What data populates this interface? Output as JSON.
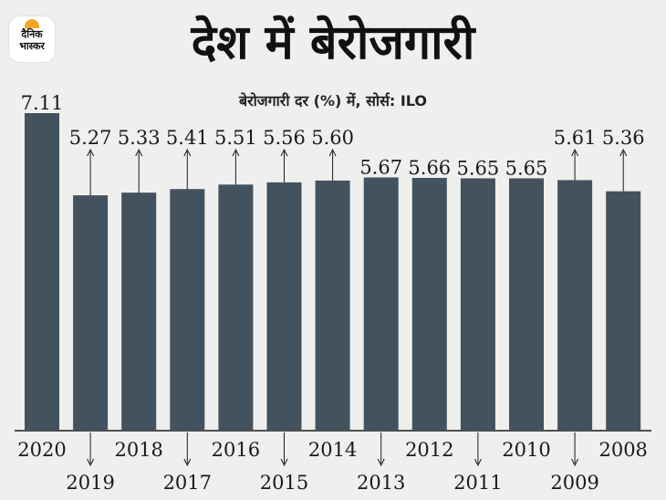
{
  "logo": {
    "line1": "दैनिक",
    "line2": "भास्कर"
  },
  "header": {
    "title": "देश में बेरोजगारी",
    "subtitle": "बेरोजगारी दर (%) में, सोर्स: ILO"
  },
  "chart_data": {
    "type": "bar",
    "categories": [
      "2020",
      "2019",
      "2018",
      "2017",
      "2016",
      "2015",
      "2014",
      "2013",
      "2012",
      "2011",
      "2010",
      "2009",
      "2008"
    ],
    "values": [
      7.11,
      5.27,
      5.33,
      5.41,
      5.51,
      5.56,
      5.6,
      5.67,
      5.66,
      5.65,
      5.65,
      5.61,
      5.36
    ],
    "value_labels": [
      "7.11",
      "5.27",
      "5.33",
      "5.41",
      "5.51",
      "5.56",
      "5.60",
      "5.67",
      "5.66",
      "5.65",
      "5.65",
      "5.61",
      "5.36"
    ],
    "title": "देश में बेरोजगारी",
    "subtitle": "बेरोजगारी दर (%) में, सोर्स: ILO",
    "xlabel": "",
    "ylabel": "",
    "ylim": [
      0,
      7.11
    ],
    "bar_color": "#43525f",
    "grid": false,
    "legend": "none"
  }
}
